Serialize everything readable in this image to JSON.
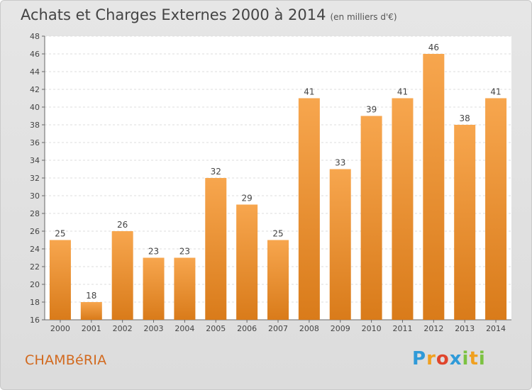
{
  "header": {
    "title": "Achats et Charges Externes 2000 à 2014",
    "unit": "(en milliers d'€)"
  },
  "footer": {
    "town": "CHAMBéRIA",
    "brand": {
      "p": "P",
      "r": "r",
      "o": "o",
      "x": "x",
      "i1": "i",
      "t": "t",
      "i2": "i"
    }
  },
  "colors": {
    "bar_top": "#f7a64e",
    "bar_bottom": "#d97b1a",
    "town": "#d2691e"
  },
  "chart_data": {
    "type": "bar",
    "categories": [
      "2000",
      "2001",
      "2002",
      "2003",
      "2004",
      "2005",
      "2006",
      "2007",
      "2008",
      "2009",
      "2010",
      "2011",
      "2012",
      "2013",
      "2014"
    ],
    "values": [
      25,
      18,
      26,
      23,
      23,
      32,
      29,
      25,
      41,
      33,
      39,
      41,
      46,
      38,
      41
    ],
    "title": "Achats et Charges Externes 2000 à 2014",
    "ylim": [
      16,
      48
    ],
    "yticks": [
      16,
      18,
      20,
      22,
      24,
      26,
      28,
      30,
      32,
      34,
      36,
      38,
      40,
      42,
      44,
      46,
      48
    ],
    "grid": true
  }
}
